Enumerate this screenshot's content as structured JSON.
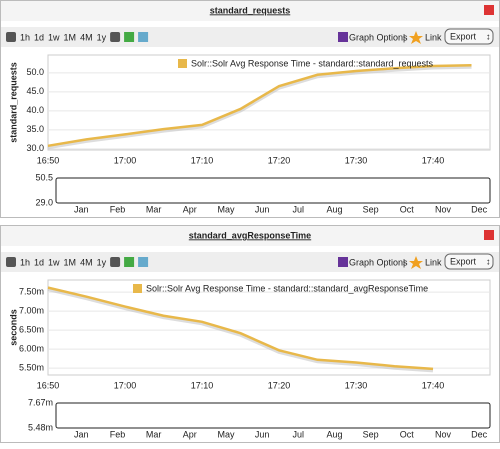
{
  "chart_data": [
    {
      "type": "line",
      "title": "standard_requests",
      "ylabel": "standard_requests",
      "toolbar": {
        "ranges": [
          "1h",
          "1d",
          "1w",
          "1M",
          "4M",
          "1y"
        ],
        "graph_options": "Graph Options",
        "link": "Link",
        "export": "Export"
      },
      "categories": [
        "16:50",
        null,
        "17:00",
        null,
        "17:10",
        null,
        "17:20",
        null,
        "17:30",
        null,
        "17:40",
        null
      ],
      "series": [
        {
          "name": "Solr::Solr Avg Response Time - standard::standard_requests",
          "color": "#e8b84a",
          "values": [
            30.8,
            32.5,
            33.8,
            35.2,
            36.3,
            40.5,
            46.5,
            49.5,
            50.5,
            51.2,
            51.8,
            52.0
          ]
        }
      ],
      "ylim": [
        29.7,
        54.7
      ],
      "yticks": [
        {
          "value": 30,
          "label": "30.0"
        },
        {
          "value": 35,
          "label": "35.0"
        },
        {
          "value": 40,
          "label": "40.0"
        },
        {
          "value": 45,
          "label": "45.0"
        },
        {
          "value": 50,
          "label": "50.0"
        }
      ],
      "navigator": {
        "labels": [
          "50.5",
          "29.0"
        ],
        "months": [
          "Jan",
          "Feb",
          "Mar",
          "Apr",
          "May",
          "Jun",
          "Jul",
          "Aug",
          "Sep",
          "Oct",
          "Nov",
          "Dec"
        ]
      }
    },
    {
      "type": "line",
      "title": "standard_avgResponseTime",
      "ylabel": "seconds",
      "toolbar": {
        "ranges": [
          "1h",
          "1d",
          "1w",
          "1M",
          "4M",
          "1y"
        ],
        "graph_options": "Graph Options",
        "link": "Link",
        "export": "Export"
      },
      "categories": [
        "16:50",
        null,
        "17:00",
        null,
        "17:10",
        null,
        "17:20",
        null,
        "17:30",
        null,
        "17:40"
      ],
      "series": [
        {
          "name": "Solr::Solr Avg Response Time - standard::standard_avgResponseTime",
          "color": "#e8b84a",
          "values": [
            7.62,
            7.38,
            7.12,
            6.88,
            6.72,
            6.42,
            5.97,
            5.72,
            5.65,
            5.55,
            5.48
          ]
        }
      ],
      "ylim": [
        5.32,
        7.82
      ],
      "yticks": [
        {
          "value": 5.5,
          "label": "5.50m"
        },
        {
          "value": 6,
          "label": "6.00m"
        },
        {
          "value": 6.5,
          "label": "6.50m"
        },
        {
          "value": 7,
          "label": "7.00m"
        },
        {
          "value": 7.5,
          "label": "7.50m"
        }
      ],
      "navigator": {
        "labels": [
          "7.67m",
          "5.48m"
        ],
        "months": [
          "Jan",
          "Feb",
          "Mar",
          "Apr",
          "May",
          "Jun",
          "Jul",
          "Aug",
          "Sep",
          "Oct",
          "Nov",
          "Dec"
        ]
      }
    }
  ]
}
